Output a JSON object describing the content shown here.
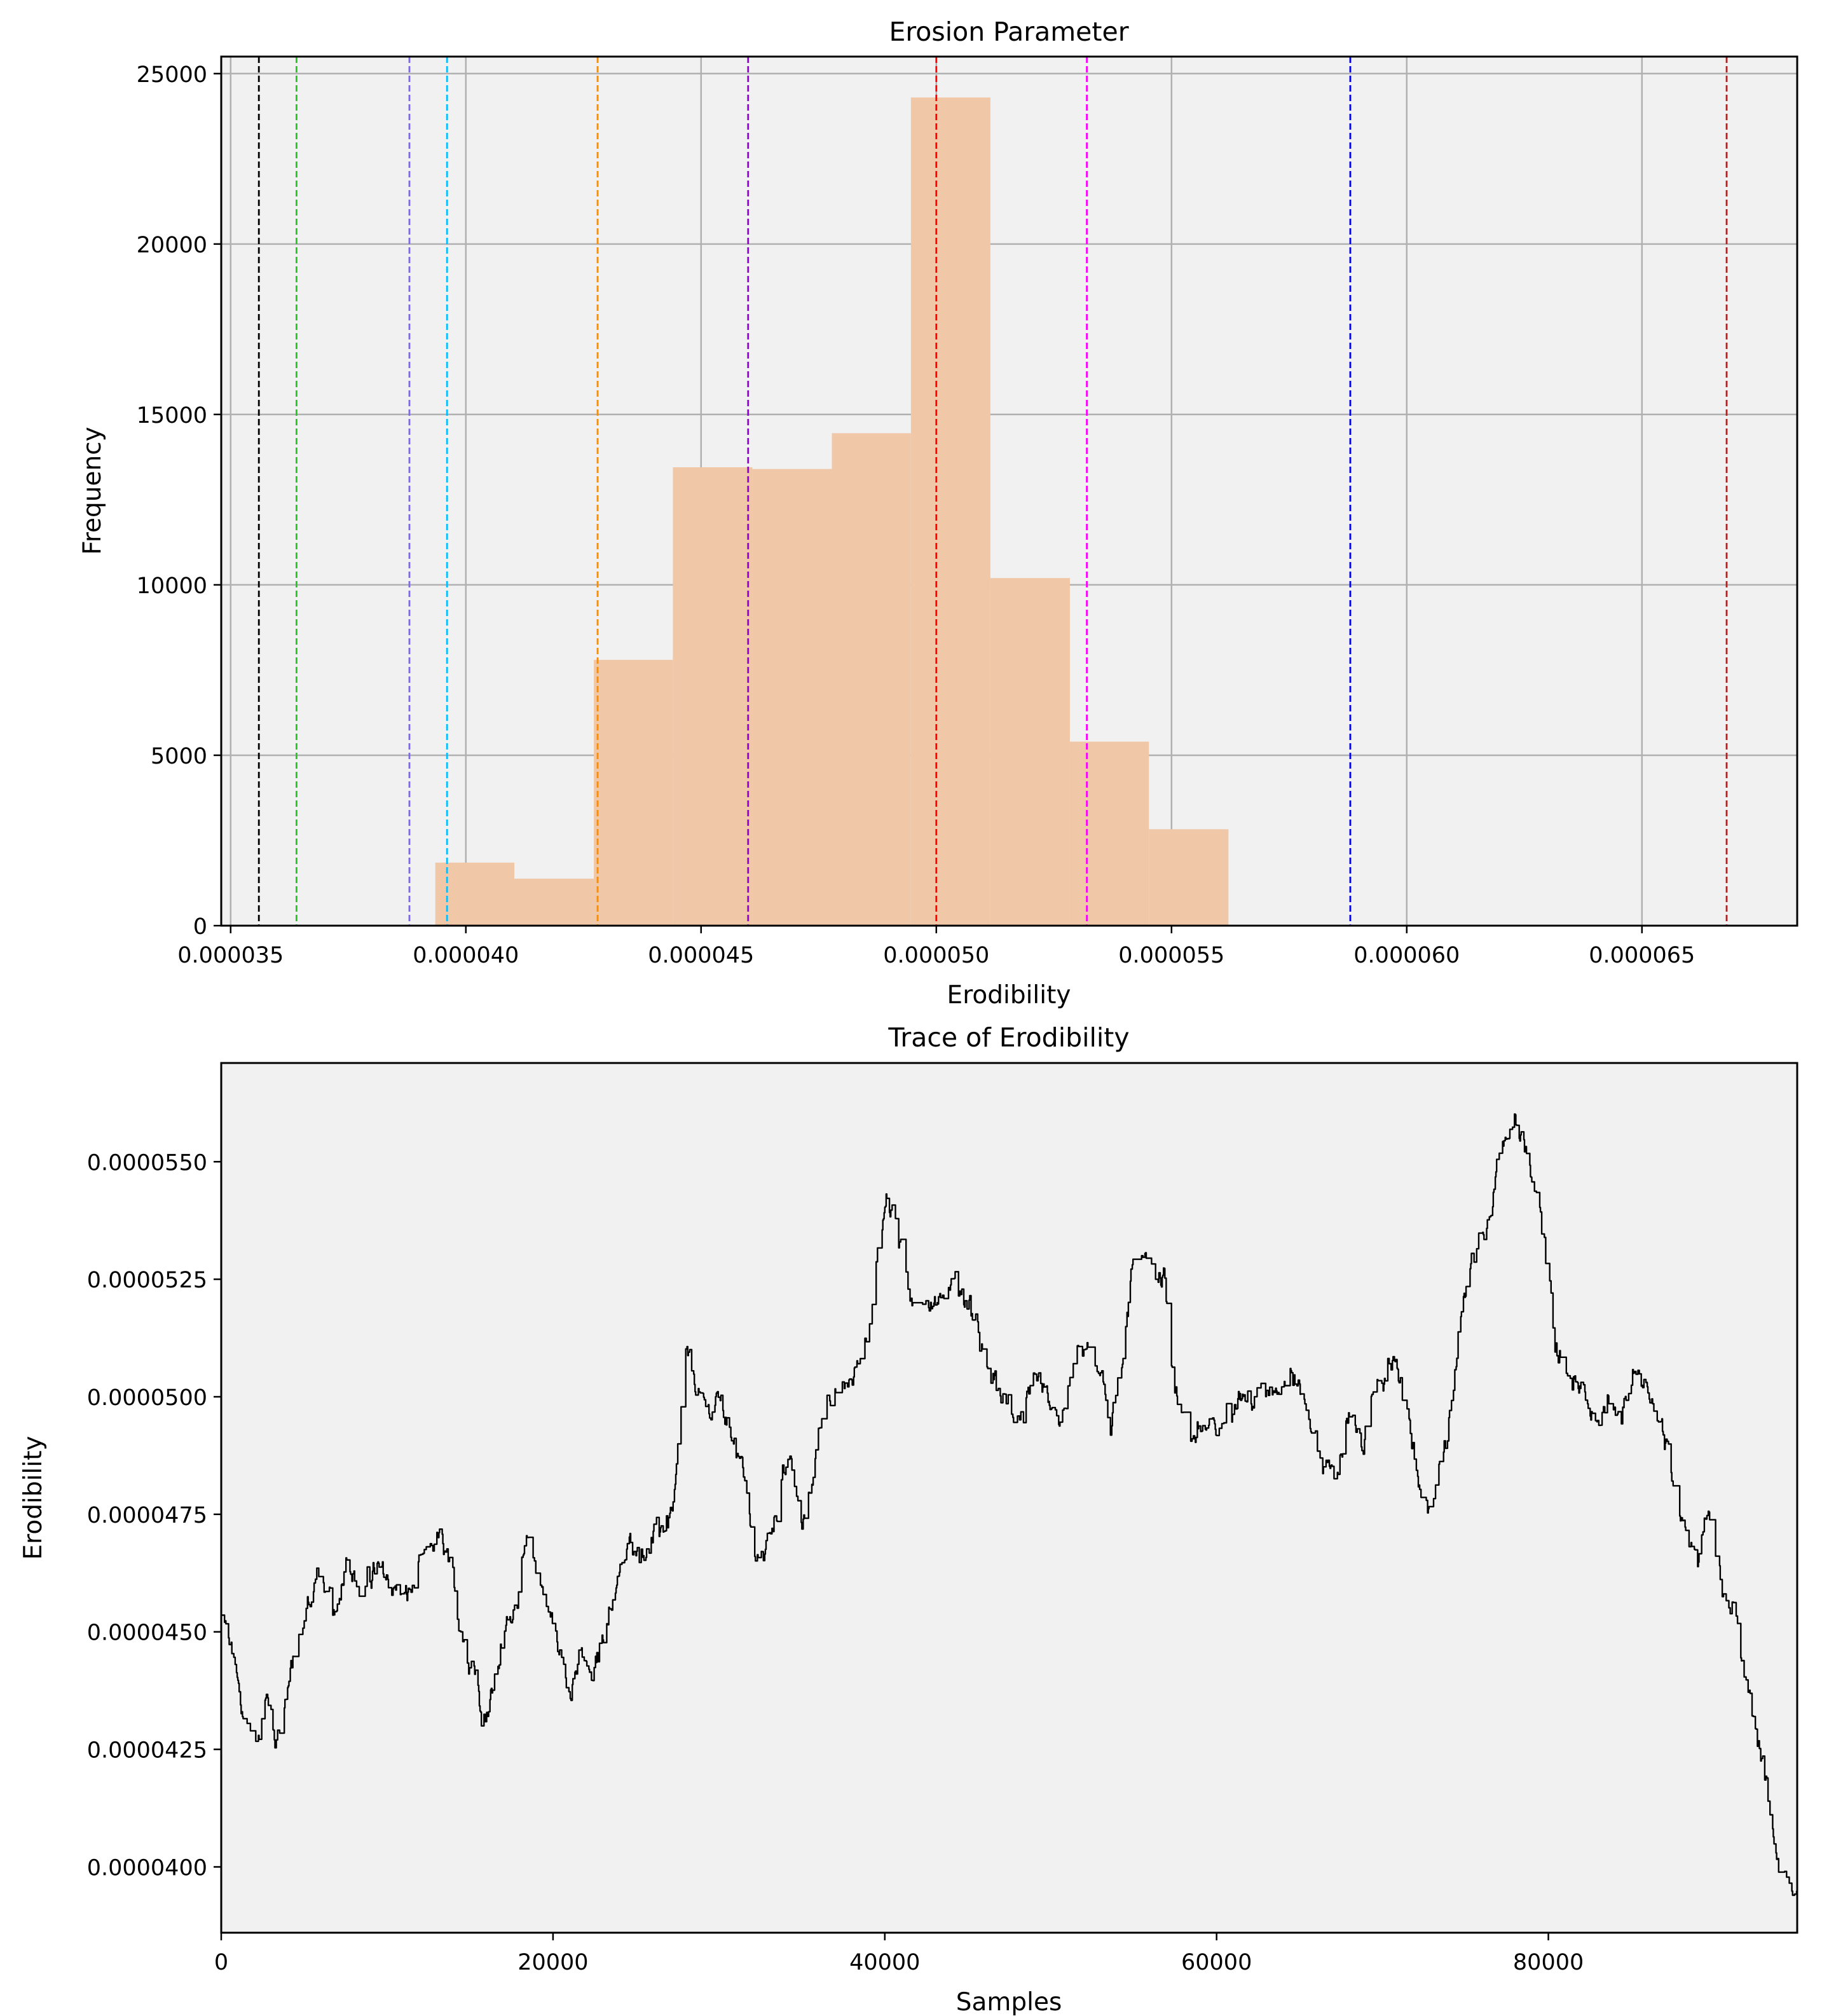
{
  "chart_data": [
    {
      "type": "bar",
      "title": "Erosion Parameter",
      "xlabel": "Erodibility",
      "ylabel": "Frequency",
      "xlim": [
        3.48e-05,
        6.83e-05
      ],
      "ylim": [
        0,
        25500
      ],
      "grid": true,
      "background": "#f1f1f1",
      "bar_color": "#f0c8a8",
      "xticks": [
        3.5e-05,
        4e-05,
        4.5e-05,
        5e-05,
        5.5e-05,
        6e-05,
        6.5e-05
      ],
      "xtick_labels": [
        "0.000035",
        "0.000040",
        "0.000045",
        "0.000050",
        "0.000055",
        "0.000060",
        "0.000065"
      ],
      "yticks": [
        0,
        5000,
        10000,
        15000,
        20000,
        25000
      ],
      "ytick_labels": [
        "0",
        "5000",
        "10000",
        "15000",
        "20000",
        "25000"
      ],
      "bins": [
        {
          "x0": 3.935e-05,
          "x1": 4.103e-05,
          "count": 1850
        },
        {
          "x0": 4.103e-05,
          "x1": 4.272e-05,
          "count": 1380
        },
        {
          "x0": 4.272e-05,
          "x1": 4.44e-05,
          "count": 7800
        },
        {
          "x0": 4.44e-05,
          "x1": 4.609e-05,
          "count": 13450
        },
        {
          "x0": 4.609e-05,
          "x1": 4.778e-05,
          "count": 13400
        },
        {
          "x0": 4.778e-05,
          "x1": 4.946e-05,
          "count": 14450
        },
        {
          "x0": 4.946e-05,
          "x1": 5.115e-05,
          "count": 24300
        },
        {
          "x0": 5.115e-05,
          "x1": 5.284e-05,
          "count": 10200
        },
        {
          "x0": 5.284e-05,
          "x1": 5.452e-05,
          "count": 5400
        },
        {
          "x0": 5.452e-05,
          "x1": 5.621e-05,
          "count": 2830
        }
      ],
      "vlines": [
        {
          "x": 3.56e-05,
          "color": "#000000"
        },
        {
          "x": 3.64e-05,
          "color": "#22c822"
        },
        {
          "x": 3.88e-05,
          "color": "#7b68ee"
        },
        {
          "x": 3.96e-05,
          "color": "#00bfff"
        },
        {
          "x": 4.28e-05,
          "color": "#ff8c00"
        },
        {
          "x": 4.6e-05,
          "color": "#9400d3"
        },
        {
          "x": 5e-05,
          "color": "#ff0000"
        },
        {
          "x": 5.32e-05,
          "color": "#ff00ff"
        },
        {
          "x": 5.88e-05,
          "color": "#0000ff"
        },
        {
          "x": 6.68e-05,
          "color": "#b22222"
        }
      ]
    },
    {
      "type": "line",
      "title": "Trace of Erodibility",
      "xlabel": "Samples",
      "ylabel": "Erodibility",
      "xlim": [
        0,
        95000
      ],
      "ylim": [
        3.86e-05,
        5.71e-05
      ],
      "grid": false,
      "background": "#f1f1f1",
      "line_color": "#000000",
      "xticks": [
        0,
        20000,
        40000,
        60000,
        80000
      ],
      "xtick_labels": [
        "0",
        "20000",
        "40000",
        "60000",
        "80000"
      ],
      "yticks": [
        4e-05,
        4.25e-05,
        4.5e-05,
        4.75e-05,
        5e-05,
        5.25e-05,
        5.5e-05
      ],
      "ytick_labels": [
        "0.0000400",
        "0.0000425",
        "0.0000450",
        "0.0000475",
        "0.0000500",
        "0.0000525",
        "0.0000550"
      ],
      "trace_anchors": {
        "x": [
          0,
          600,
          1200,
          2000,
          2800,
          3300,
          4000,
          4700,
          5200,
          5800,
          6400,
          6900,
          7600,
          8400,
          9200,
          10200,
          11200,
          12200,
          13100,
          13800,
          14600,
          15300,
          15700,
          16300,
          17000,
          17800,
          18500,
          19300,
          20200,
          20800,
          21700,
          22400,
          23100,
          24000,
          24800,
          25600,
          26400,
          27300,
          28000,
          28600,
          29200,
          30000,
          30800,
          31600,
          32100,
          32800,
          33600,
          34300,
          35000,
          35800,
          36500,
          37300,
          38200,
          39100,
          40100,
          40600,
          41200,
          42000,
          43100,
          44300,
          45400,
          46200,
          47200,
          48200,
          49200,
          50100,
          50600,
          51300,
          52100,
          52800,
          53600,
          54400,
          55100,
          55800,
          56800,
          57500,
          58300,
          59100,
          60100,
          61100,
          62100,
          63200,
          64500,
          65600,
          66400,
          67100,
          67900,
          68800,
          69600,
          70600,
          71500,
          72300,
          73000,
          73800,
          74700,
          75500,
          76300,
          77000,
          77700,
          78500,
          79400,
          80400,
          81300,
          82200,
          83000,
          83700,
          84300,
          85200,
          86000,
          86800,
          87600,
          88300,
          89000,
          89500,
          90400,
          91200,
          91800,
          92700,
          93300,
          94000,
          95000
        ],
        "y": [
          4.53e-05,
          4.46e-05,
          4.33e-05,
          4.28e-05,
          4.36e-05,
          4.27e-05,
          4.38e-05,
          4.49e-05,
          4.55e-05,
          4.63e-05,
          4.58e-05,
          4.51e-05,
          4.69e-05,
          4.57e-05,
          4.63e-05,
          4.6e-05,
          4.57e-05,
          4.65e-05,
          4.7e-05,
          4.62e-05,
          4.49e-05,
          4.43e-05,
          4.31e-05,
          4.37e-05,
          4.48e-05,
          4.59e-05,
          4.68e-05,
          4.6e-05,
          4.48e-05,
          4.39e-05,
          4.44e-05,
          4.39e-05,
          4.51e-05,
          4.62e-05,
          4.69e-05,
          4.68e-05,
          4.71e-05,
          4.76e-05,
          5.08e-05,
          5.03e-05,
          4.96e-05,
          4.99e-05,
          4.93e-05,
          4.82e-05,
          4.64e-05,
          4.68e-05,
          4.78e-05,
          4.87e-05,
          4.72e-05,
          4.89e-05,
          4.99e-05,
          5.02e-05,
          5.05e-05,
          5.18e-05,
          5.43e-05,
          5.38e-05,
          5.27e-05,
          5.19e-05,
          5.21e-05,
          5.24e-05,
          5.16e-05,
          5.05e-05,
          4.99e-05,
          4.96e-05,
          5.01e-05,
          4.97e-05,
          4.93e-05,
          5.06e-05,
          5.12e-05,
          5.04e-05,
          4.95e-05,
          5.08e-05,
          5.33e-05,
          5.27e-05,
          5.26e-05,
          5.03e-05,
          4.91e-05,
          4.93e-05,
          4.92e-05,
          5.02e-05,
          4.99e-05,
          5.03e-05,
          5.05e-05,
          4.96e-05,
          4.86e-05,
          4.83e-05,
          4.94e-05,
          4.92e-05,
          5.03e-05,
          5.07e-05,
          4.97e-05,
          4.76e-05,
          4.78e-05,
          4.91e-05,
          5.17e-05,
          5.31e-05,
          5.38e-05,
          5.52e-05,
          5.6e-05,
          5.53e-05,
          5.41e-05,
          5.13e-05,
          5.03e-05,
          5.01e-05,
          4.94e-05,
          4.97e-05,
          4.93e-05,
          5.06e-05,
          5.02e-05,
          4.94e-05,
          4.81e-05,
          4.73e-05,
          4.66e-05,
          4.77e-05,
          4.6e-05,
          4.54e-05,
          4.4e-05,
          4.25e-05,
          4.13e-05,
          3.99e-05,
          3.97e-05
        ]
      }
    }
  ]
}
